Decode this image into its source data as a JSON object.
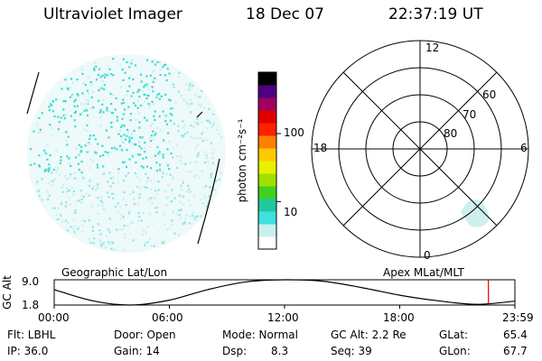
{
  "header": {
    "instrument": "Ultraviolet Imager",
    "date": "18 Dec 07",
    "time": "22:37:19 UT"
  },
  "colorbar": {
    "unit_label": "photon cm⁻²s⁻¹",
    "tick_labels": [
      "100",
      "10"
    ],
    "ticks": [
      100,
      10
    ],
    "range": [
      2,
      800
    ],
    "scale": "log",
    "colors": [
      "#ffffff",
      "#c8f0f0",
      "#40e0e0",
      "#20c8a0",
      "#40d020",
      "#a0e000",
      "#e8f000",
      "#ffc800",
      "#ff8000",
      "#ff2000",
      "#e00000",
      "#a00060",
      "#500080",
      "#000000"
    ]
  },
  "polar_plot": {
    "lat_labels": [
      "60",
      "70",
      "80"
    ],
    "mlt_labels": [
      "12",
      "18",
      "6",
      "0"
    ]
  },
  "panel_labels": {
    "left": "Geographic Lat/Lon",
    "right": "Apex MLat/MLT"
  },
  "chart_data": {
    "type": "line",
    "ylabel": "GC Alt",
    "y_ticks": [
      "9.0",
      "1.8"
    ],
    "ylim": [
      1.8,
      9.0
    ],
    "x_ticks": [
      "00:00",
      "06:00",
      "12:00",
      "18:00",
      "23:59"
    ],
    "x_hours": [
      0,
      2,
      4,
      6,
      8,
      10,
      12,
      14,
      16,
      18,
      20,
      22,
      24
    ],
    "y_values": [
      6.2,
      3.0,
      1.8,
      3.2,
      6.2,
      8.4,
      9.0,
      8.6,
      6.8,
      4.6,
      3.0,
      2.0,
      2.9
    ],
    "marker_hour": 22.62,
    "marker_color": "#e00000"
  },
  "info": {
    "filter": "Flt: LBHL",
    "ip": "IP: 36.0",
    "door": "Door: Open",
    "gain": "Gain: 14",
    "mode": "Mode: Normal",
    "dsp_label": "Dsp:",
    "dsp_value": "8.3",
    "gc_alt": "GC Alt: 2.2 Re",
    "seq": "Seq: 39",
    "glat_label": "GLat:",
    "glat_value": "65.4",
    "glon_label": "GLon:",
    "glon_value": "67.7"
  }
}
